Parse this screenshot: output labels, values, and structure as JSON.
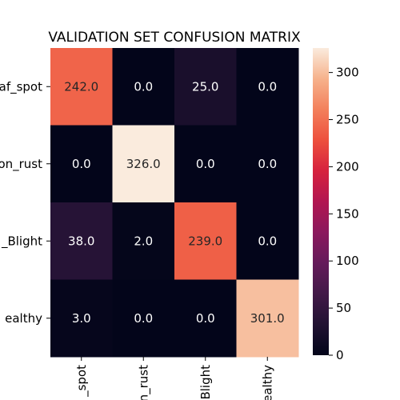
{
  "chart_data": {
    "type": "heatmap",
    "title": "VALIDATION SET CONFUSION MATRIX",
    "row_labels": [
      "af_spot",
      "on_rust",
      "_Blight",
      "ealthy"
    ],
    "col_labels": [
      "_spot",
      "n_rust",
      "Blight",
      "ealthy"
    ],
    "values": [
      [
        242.0,
        0.0,
        25.0,
        0.0
      ],
      [
        0.0,
        326.0,
        0.0,
        0.0
      ],
      [
        38.0,
        2.0,
        239.0,
        0.0
      ],
      [
        3.0,
        0.0,
        0.0,
        301.0
      ]
    ],
    "cell_text": [
      [
        "242.0",
        "0.0",
        "25.0",
        "0.0"
      ],
      [
        "0.0",
        "326.0",
        "0.0",
        "0.0"
      ],
      [
        "38.0",
        "2.0",
        "239.0",
        "0.0"
      ],
      [
        "3.0",
        "0.0",
        "0.0",
        "301.0"
      ]
    ],
    "colormap": "rocket",
    "colorbar": {
      "vmin": 0,
      "vmax": 326,
      "ticks": [
        0,
        50,
        100,
        150,
        200,
        250,
        300
      ],
      "tick_labels": [
        "0",
        "50",
        "100",
        "150",
        "200",
        "250",
        "300"
      ]
    }
  }
}
